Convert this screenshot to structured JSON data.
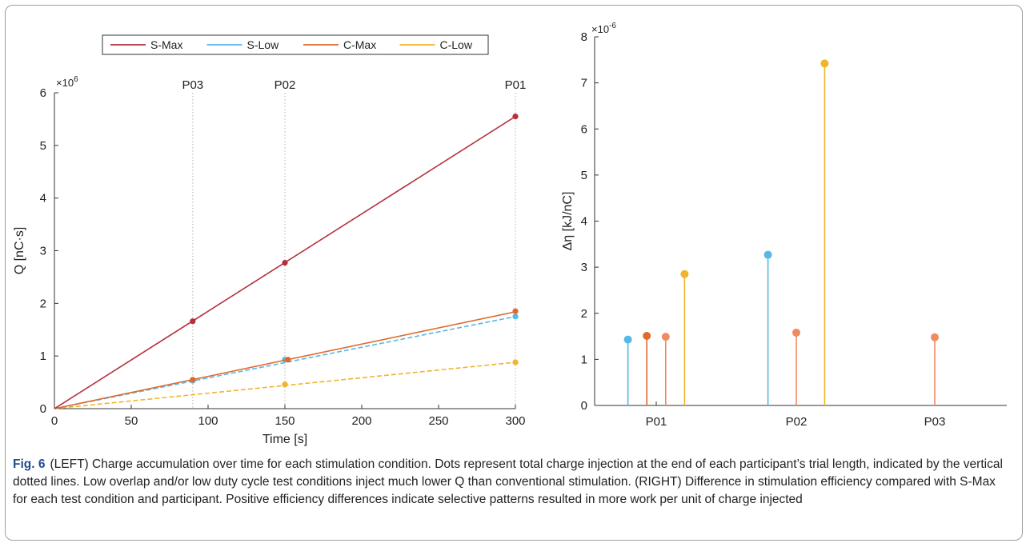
{
  "caption": {
    "label": "Fig. 6",
    "text": "(LEFT) Charge accumulation over time for each stimulation condition. Dots represent total charge injection at the end of each participant’s trial length, indicated by the vertical dotted lines. Low overlap and/or low duty cycle test conditions inject much lower Q than conventional stimulation. (RIGHT) Difference in stimulation efficiency compared with S-Max for each test condition and participant. Positive efficiency differences indicate selective patterns resulted in more work per unit of charge injected"
  },
  "colors": {
    "S-Max": "#b5303f",
    "S-Low": "#55b8e6",
    "C-Max": "#e06a2e",
    "C-Low": "#efb52b",
    "C-Max-light": "#f08a60"
  },
  "chart_data": [
    {
      "type": "line",
      "xlabel": "Time [s]",
      "ylabel": "Q [nC·s]",
      "y_multiplier_label": "×10",
      "y_multiplier_exp": "6",
      "xlim": [
        0,
        300
      ],
      "ylim": [
        0,
        6
      ],
      "xticks": [
        0,
        50,
        100,
        150,
        200,
        250,
        300
      ],
      "yticks": [
        0,
        1,
        2,
        3,
        4,
        5,
        6
      ],
      "legend_position": "top",
      "vlines": [
        {
          "x": 90,
          "label": "P03"
        },
        {
          "x": 150,
          "label": "P02"
        },
        {
          "x": 300,
          "label": "P01"
        }
      ],
      "series": [
        {
          "name": "S-Max",
          "x": [
            0,
            300
          ],
          "y": [
            0,
            5.55
          ],
          "points": [
            [
              90,
              1.66
            ],
            [
              150,
              2.77
            ],
            [
              300,
              5.55
            ]
          ]
        },
        {
          "name": "S-Low",
          "x": [
            0,
            300
          ],
          "y": [
            0,
            1.75
          ],
          "points": [
            [
              90,
              0.53
            ],
            [
              150,
              0.93
            ],
            [
              300,
              1.75
            ]
          ]
        },
        {
          "name": "C-Max",
          "x": [
            0,
            300
          ],
          "y": [
            0,
            1.84
          ],
          "points": [
            [
              90,
              0.55
            ],
            [
              152,
              0.93
            ],
            [
              300,
              1.85
            ]
          ]
        },
        {
          "name": "C-Low",
          "x": [
            0,
            300
          ],
          "y": [
            0,
            0.88
          ],
          "points": [
            [
              150,
              0.46
            ],
            [
              300,
              0.88
            ]
          ]
        }
      ]
    },
    {
      "type": "stem",
      "ylabel": "Δη [kJ/nC]",
      "y_multiplier_label": "×10",
      "y_multiplier_exp": "-6",
      "ylim": [
        0,
        8
      ],
      "yticks": [
        0,
        1,
        2,
        3,
        4,
        5,
        6,
        7,
        8
      ],
      "categories": [
        "P01",
        "P02",
        "P03"
      ],
      "stems": [
        {
          "category": "P01",
          "offset": -0.3,
          "value": 1.43,
          "color": "S-Low"
        },
        {
          "category": "P01",
          "offset": -0.1,
          "value": 1.51,
          "color": "C-Max"
        },
        {
          "category": "P01",
          "offset": 0.1,
          "value": 1.49,
          "color": "C-Max-light"
        },
        {
          "category": "P01",
          "offset": 0.3,
          "value": 2.85,
          "color": "C-Low"
        },
        {
          "category": "P02",
          "offset": -0.3,
          "value": 3.27,
          "color": "S-Low"
        },
        {
          "category": "P02",
          "offset": 0.0,
          "value": 1.58,
          "color": "C-Max-light"
        },
        {
          "category": "P02",
          "offset": 0.3,
          "value": 7.42,
          "color": "C-Low"
        },
        {
          "category": "P03",
          "offset": 0.0,
          "value": 1.48,
          "color": "C-Max-light"
        }
      ]
    }
  ]
}
